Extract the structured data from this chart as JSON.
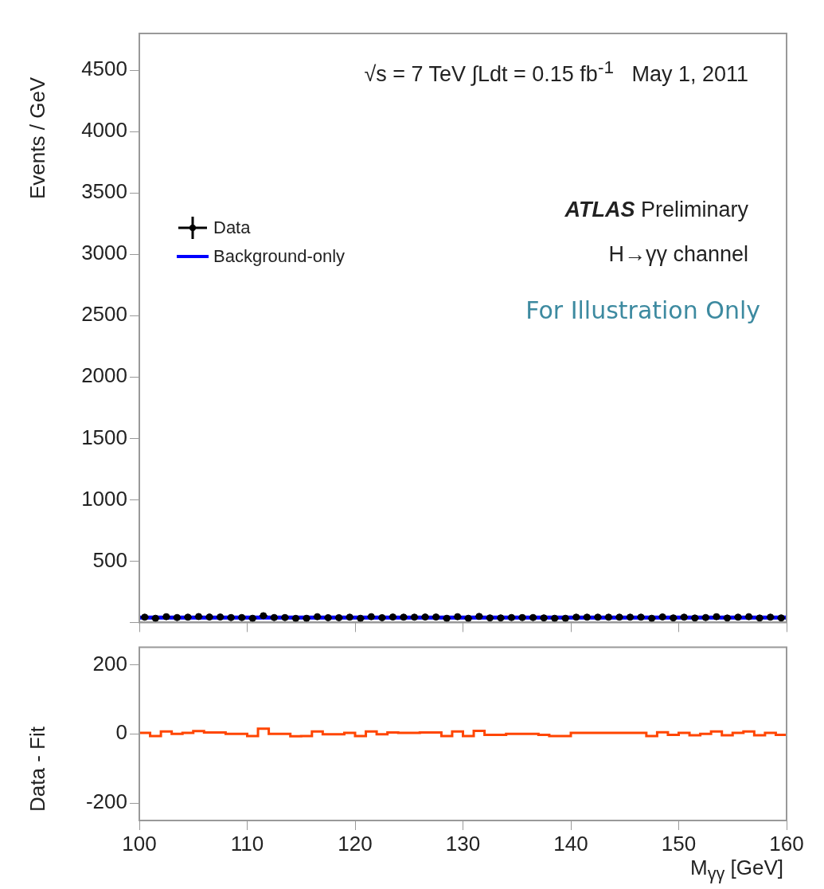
{
  "chart_data": [
    {
      "type": "scatter",
      "ylabel": "Events / GeV",
      "annotations": [
        "√s = 7 TeV ∫Ldt = 0.15 fb$^{-1}$   May 1, 2011",
        "ATLAS Preliminary",
        "H→γγ channel",
        "For Illustration Only"
      ],
      "series": [
        {
          "name": "Data",
          "type": "scatter",
          "color": "#000000",
          "x": [
            100.5,
            101.5,
            102.5,
            103.5,
            104.5,
            105.5,
            106.5,
            107.5,
            108.5,
            109.5,
            110.5,
            111.5,
            112.5,
            113.5,
            114.5,
            115.5,
            116.5,
            117.5,
            118.5,
            119.5,
            120.5,
            121.5,
            122.5,
            123.5,
            124.5,
            125.5,
            126.5,
            127.5,
            128.5,
            129.5,
            130.5,
            131.5,
            132.5,
            133.5,
            134.5,
            135.5,
            136.5,
            137.5,
            138.5,
            139.5,
            140.5,
            141.5,
            142.5,
            143.5,
            144.5,
            145.5,
            146.5,
            147.5,
            148.5,
            149.5,
            150.5,
            151.5,
            152.5,
            153.5,
            154.5,
            155.5,
            156.5,
            157.5,
            158.5,
            159.5
          ],
          "values": [
            43,
            34,
            47,
            40,
            43,
            48,
            44,
            44,
            40,
            40,
            34,
            55,
            40,
            40,
            33,
            34,
            47,
            39,
            39,
            43,
            34,
            47,
            39,
            44,
            43,
            43,
            44,
            44,
            34,
            47,
            34,
            49,
            37,
            37,
            40,
            40,
            40,
            37,
            34,
            34,
            43,
            43,
            43,
            43,
            43,
            43,
            43,
            34,
            45,
            37,
            43,
            36,
            40,
            47,
            36,
            43,
            47,
            36,
            43,
            37
          ],
          "errors": [
            6,
            6,
            6,
            6,
            6,
            6,
            6,
            6,
            6,
            6,
            6,
            6,
            6,
            6,
            6,
            6,
            6,
            6,
            6,
            6,
            6,
            6,
            6,
            6,
            6,
            6,
            6,
            6,
            6,
            6,
            6,
            6,
            6,
            6,
            6,
            6,
            6,
            6,
            6,
            6,
            6,
            6,
            6,
            6,
            6,
            6,
            6,
            6,
            6,
            6,
            6,
            6,
            6,
            6,
            6,
            6,
            6,
            6,
            6,
            6
          ],
          "marker": "circle"
        },
        {
          "name": "Background-only",
          "type": "line",
          "color": "#0000ff",
          "x": [
            100,
            160
          ],
          "values": [
            40,
            40
          ]
        }
      ],
      "legend": "top left",
      "xlim": [
        100,
        160
      ],
      "xticks": [
        100,
        110,
        120,
        130,
        140,
        150,
        160
      ],
      "ylim": [
        0,
        4800
      ],
      "yticks": [
        {
          "value": 0,
          "label": null
        },
        500,
        1000,
        1500,
        2000,
        2500,
        3000,
        3500,
        4000,
        4500
      ],
      "tick_labels": "y"
    },
    {
      "type": "histogram",
      "xlabel": "M$_{γγ}$ [GeV]",
      "ylabel": "Data - Fit",
      "color": "#ff4500",
      "bins": [
        100,
        101,
        102,
        103,
        104,
        105,
        106,
        107,
        108,
        109,
        110,
        111,
        112,
        113,
        114,
        115,
        116,
        117,
        118,
        119,
        120,
        121,
        122,
        123,
        124,
        125,
        126,
        127,
        128,
        129,
        130,
        131,
        132,
        133,
        134,
        135,
        136,
        137,
        138,
        139,
        140,
        141,
        142,
        143,
        144,
        145,
        146,
        147,
        148,
        149,
        150,
        151,
        152,
        153,
        154,
        155,
        156,
        157,
        158,
        159,
        160
      ],
      "values": [
        3,
        -6,
        7,
        0,
        3,
        8,
        4,
        4,
        0,
        0,
        -6,
        15,
        0,
        0,
        -7,
        -6,
        7,
        -1,
        -1,
        3,
        -6,
        7,
        -1,
        4,
        3,
        3,
        4,
        4,
        -6,
        7,
        -6,
        9,
        -3,
        -3,
        0,
        0,
        0,
        -3,
        -6,
        -6,
        3,
        3,
        3,
        3,
        3,
        3,
        3,
        -6,
        5,
        -3,
        3,
        -4,
        0,
        7,
        -4,
        3,
        7,
        -4,
        3,
        -3
      ],
      "xlim": [
        100,
        160
      ],
      "xticks": [
        100,
        110,
        120,
        130,
        140,
        150,
        160
      ],
      "ylim": [
        -250,
        250
      ],
      "yticks": [
        -200,
        0,
        200
      ]
    }
  ]
}
